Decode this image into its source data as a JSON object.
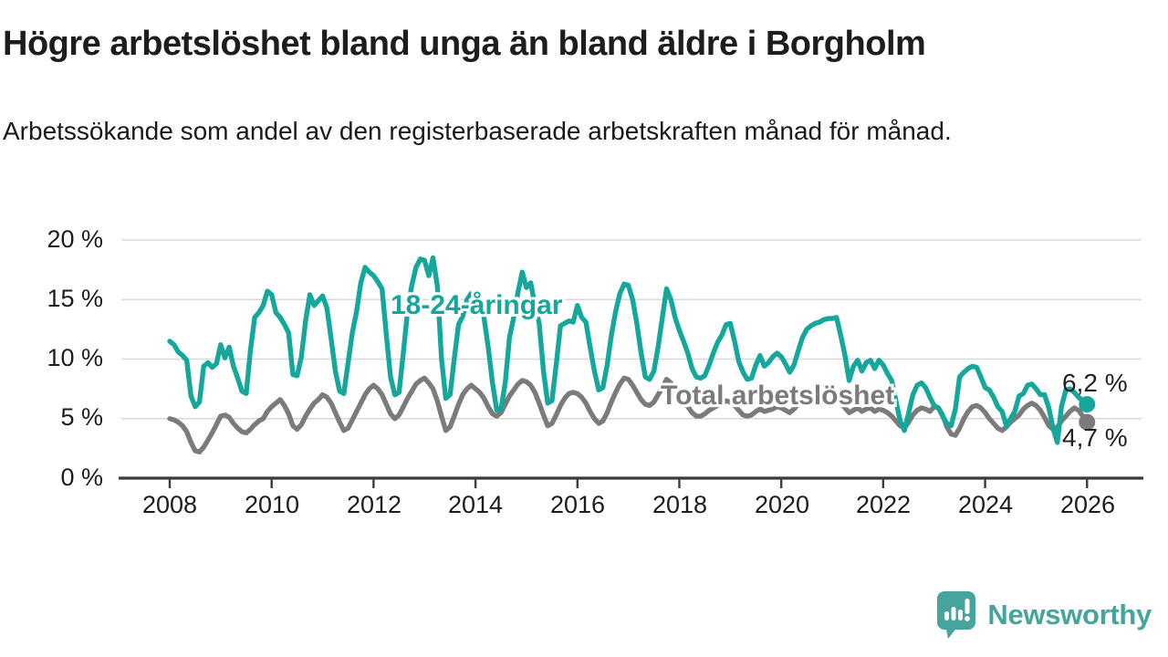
{
  "header": {
    "title": "Högre arbetslöshet bland unga än bland äldre i Borgholm",
    "subtitle": "Arbetssökande som andel av den registerbaserade arbetskraften månad för månad."
  },
  "chart_data": {
    "type": "line",
    "title": "Högre arbetslöshet bland unga än bland äldre i Borgholm",
    "subtitle": "Arbetssökande som andel av den registerbaserade arbetskraften månad för månad.",
    "grid": "horizontal-only",
    "legend_position": "inline-labels",
    "y_axis": {
      "min": 0,
      "max": 20,
      "tick_values": [
        20,
        15,
        10,
        5,
        0
      ],
      "tick_labels": [
        "20 %",
        "15 %",
        "10 %",
        "5 %",
        "0 %"
      ],
      "gridline_values": [
        20,
        15,
        10,
        5
      ]
    },
    "x_axis": {
      "start_year": 2008,
      "end_value": "2026-01",
      "points_per_year": 12,
      "tick_years": [
        2008,
        2010,
        2012,
        2014,
        2016,
        2018,
        2020,
        2022,
        2024,
        2026
      ],
      "labels": [
        "2008",
        "2010",
        "2012",
        "2014",
        "2016",
        "2018",
        "2020",
        "2022",
        "2024",
        "2026"
      ]
    },
    "series": [
      {
        "name": "Total arbetslöshet",
        "label": "Total arbetslöshet",
        "color": "#7b7b7b",
        "end_label": "4,7 %",
        "end_value": 4.7,
        "values": [
          5.0,
          4.9,
          4.7,
          4.4,
          3.9,
          3.0,
          2.3,
          2.2,
          2.6,
          3.2,
          3.8,
          4.5,
          5.2,
          5.3,
          5.1,
          4.6,
          4.2,
          3.9,
          3.8,
          4.1,
          4.5,
          4.8,
          5.0,
          5.6,
          6.0,
          6.3,
          6.6,
          6.1,
          5.4,
          4.4,
          4.1,
          4.5,
          5.2,
          5.8,
          6.3,
          6.6,
          7.0,
          6.8,
          6.3,
          5.5,
          4.7,
          4.0,
          4.2,
          4.9,
          5.6,
          6.3,
          7.0,
          7.5,
          7.8,
          7.5,
          7.0,
          6.2,
          5.4,
          5.0,
          5.3,
          6.0,
          6.7,
          7.3,
          7.9,
          8.2,
          8.4,
          8.0,
          7.5,
          6.5,
          5.2,
          4.0,
          4.3,
          5.2,
          6.2,
          7.0,
          7.5,
          7.8,
          7.5,
          7.2,
          6.7,
          6.0,
          5.4,
          5.2,
          5.5,
          6.2,
          6.9,
          7.4,
          7.9,
          8.2,
          8.1,
          7.8,
          7.2,
          6.3,
          5.3,
          4.4,
          4.6,
          5.3,
          6.1,
          6.7,
          7.1,
          7.2,
          7.1,
          6.8,
          6.3,
          5.6,
          5.0,
          4.6,
          4.8,
          5.5,
          6.4,
          7.2,
          7.9,
          8.4,
          8.3,
          7.8,
          7.2,
          6.6,
          6.2,
          6.1,
          6.4,
          7.0,
          7.6,
          8.3,
          8.0,
          7.4,
          6.8,
          6.4,
          6.0,
          5.5,
          5.2,
          5.2,
          5.4,
          5.7,
          5.9,
          6.1,
          6.3,
          6.5,
          6.4,
          6.1,
          5.7,
          5.3,
          5.2,
          5.3,
          5.6,
          5.8,
          5.6,
          5.7,
          5.8,
          6.0,
          5.9,
          5.7,
          5.5,
          5.8,
          6.2,
          6.5,
          6.7,
          6.8,
          6.8,
          6.8,
          6.8,
          6.8,
          6.8,
          6.7,
          6.3,
          5.9,
          5.5,
          5.7,
          5.9,
          5.6,
          5.8,
          5.9,
          5.6,
          5.8,
          5.7,
          5.5,
          5.2,
          4.8,
          4.4,
          4.2,
          4.7,
          5.3,
          5.7,
          5.9,
          5.8,
          5.6,
          6.0,
          5.9,
          5.3,
          4.3,
          3.7,
          3.6,
          4.2,
          5.0,
          5.6,
          6.0,
          6.1,
          5.9,
          5.5,
          5.0,
          4.6,
          4.2,
          4.0,
          4.3,
          4.7,
          5.0,
          5.3,
          5.8,
          6.1,
          6.3,
          6.1,
          5.7,
          5.1,
          4.4,
          4.1,
          4.3,
          4.8,
          5.2,
          5.6,
          5.9,
          5.7,
          5.2,
          4.7
        ]
      },
      {
        "name": "18-24-åringar",
        "label": "18-24-åringar",
        "color": "#15a79b",
        "end_label": "6,2 %",
        "end_value": 6.2,
        "values": [
          11.5,
          11.2,
          10.6,
          10.3,
          9.9,
          6.9,
          6.0,
          6.4,
          9.4,
          9.7,
          9.3,
          9.6,
          11.2,
          10.1,
          11.0,
          9.4,
          8.4,
          7.3,
          7.1,
          10.7,
          13.5,
          13.9,
          14.5,
          15.7,
          15.4,
          13.9,
          13.5,
          12.9,
          12.2,
          8.7,
          8.6,
          10.2,
          13.2,
          15.4,
          14.5,
          14.9,
          15.3,
          14.3,
          11.7,
          9.0,
          7.3,
          7.1,
          9.7,
          12.2,
          14.0,
          16.4,
          17.7,
          17.3,
          17.0,
          16.5,
          15.9,
          12.0,
          8.5,
          7.0,
          7.2,
          10.5,
          14.0,
          16.2,
          17.7,
          18.4,
          18.3,
          17.0,
          18.5,
          16.2,
          10.0,
          6.7,
          7.0,
          10.0,
          12.9,
          13.6,
          15.0,
          15.5,
          15.3,
          14.8,
          13.5,
          11.0,
          8.0,
          5.7,
          5.8,
          8.0,
          11.8,
          13.5,
          15.6,
          17.3,
          16.0,
          16.4,
          14.5,
          13.0,
          9.0,
          6.3,
          6.5,
          9.5,
          12.8,
          13.0,
          13.2,
          13.1,
          14.5,
          13.5,
          13.1,
          11.0,
          9.0,
          7.4,
          7.6,
          9.5,
          12.0,
          14.0,
          15.5,
          16.3,
          16.2,
          15.0,
          13.0,
          10.5,
          8.5,
          8.3,
          9.0,
          11.0,
          13.5,
          15.9,
          15.0,
          13.5,
          12.4,
          11.5,
          10.5,
          9.2,
          8.5,
          8.4,
          8.6,
          9.5,
          10.5,
          11.4,
          12.0,
          12.9,
          13.0,
          11.5,
          9.8,
          8.9,
          8.3,
          8.4,
          9.5,
          10.3,
          9.4,
          9.7,
          10.2,
          10.5,
          10.2,
          9.6,
          8.9,
          9.5,
          10.7,
          11.8,
          12.5,
          12.8,
          13.0,
          13.1,
          13.3,
          13.4,
          13.4,
          13.5,
          12.0,
          10.3,
          8.2,
          9.4,
          9.9,
          9.0,
          9.7,
          9.9,
          9.2,
          9.9,
          9.5,
          8.8,
          8.2,
          6.5,
          4.8,
          4.0,
          5.5,
          7.0,
          7.8,
          8.0,
          7.6,
          6.8,
          6.1,
          5.9,
          5.2,
          4.6,
          4.4,
          5.8,
          8.5,
          8.9,
          9.2,
          9.4,
          9.3,
          8.5,
          7.6,
          7.4,
          6.8,
          6.0,
          5.6,
          4.4,
          5.0,
          5.6,
          6.9,
          7.1,
          7.8,
          7.9,
          7.5,
          7.0,
          7.0,
          5.9,
          4.2,
          3.0,
          6.0,
          7.4,
          7.5,
          7.2,
          6.8,
          6.5,
          6.2
        ]
      }
    ]
  },
  "footer": {
    "brand": "Newsworthy"
  },
  "colors": {
    "young_series": "#15a79b",
    "total_series": "#7b7b7b",
    "axis": "#3b3b3b",
    "gridline": "#d8d8d8",
    "text": "#1d1d1b",
    "brand": "#45a49c"
  }
}
